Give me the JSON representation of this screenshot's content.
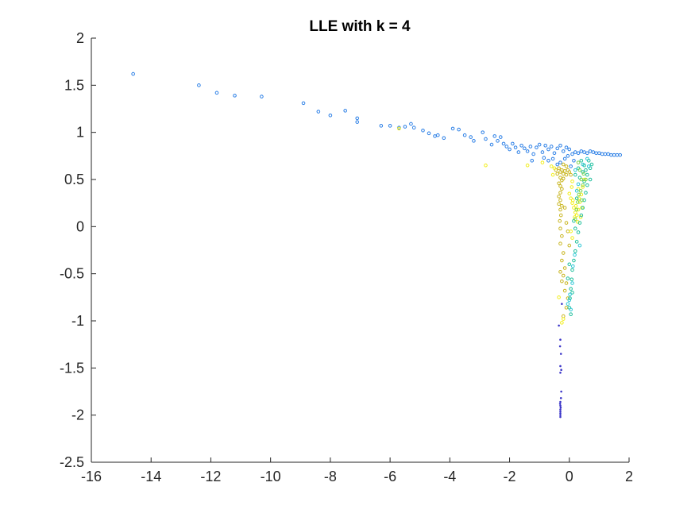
{
  "chart_data": {
    "type": "scatter",
    "title": "LLE with k = 4",
    "xlabel": "",
    "ylabel": "",
    "xlim": [
      -16,
      2
    ],
    "ylim": [
      -2.5,
      2
    ],
    "xticks": [
      -16,
      -14,
      -12,
      -10,
      -8,
      -6,
      -4,
      -2,
      0,
      2
    ],
    "yticks": [
      -2.5,
      -2,
      -1.5,
      -1,
      -0.5,
      0,
      0.5,
      1,
      1.5,
      2
    ],
    "grid": false,
    "legend": "none",
    "colors": {
      "blue": "#2b7fe6",
      "dark_blue": "#3b35c8",
      "teal": "#1fbf9c",
      "cyan": "#2ec7d6",
      "green": "#7cd44c",
      "olive": "#c8b51f",
      "yellow": "#f2ee1a",
      "axis": "#262626"
    },
    "series": [
      {
        "color": "blue",
        "marker": "circle",
        "points": [
          [
            -14.6,
            1.62
          ],
          [
            -12.4,
            1.5
          ],
          [
            -11.8,
            1.42
          ],
          [
            -11.2,
            1.39
          ],
          [
            -10.3,
            1.38
          ],
          [
            -8.9,
            1.31
          ],
          [
            -8.4,
            1.22
          ],
          [
            -8.0,
            1.18
          ],
          [
            -7.5,
            1.23
          ],
          [
            -7.1,
            1.15
          ],
          [
            -7.1,
            1.11
          ],
          [
            -6.3,
            1.07
          ],
          [
            -6.0,
            1.07
          ],
          [
            -5.7,
            1.05
          ],
          [
            -5.5,
            1.06
          ],
          [
            -5.3,
            1.09
          ],
          [
            -5.2,
            1.05
          ],
          [
            -4.9,
            1.02
          ],
          [
            -4.7,
            0.99
          ],
          [
            -4.5,
            0.96
          ],
          [
            -4.4,
            0.97
          ],
          [
            -4.2,
            0.94
          ],
          [
            -3.9,
            1.04
          ],
          [
            -3.7,
            1.03
          ],
          [
            -3.5,
            0.97
          ],
          [
            -3.3,
            0.95
          ],
          [
            -3.2,
            0.91
          ],
          [
            -2.9,
            1.0
          ],
          [
            -2.8,
            0.93
          ],
          [
            -2.6,
            0.87
          ],
          [
            -2.5,
            0.96
          ],
          [
            -2.4,
            0.91
          ],
          [
            -2.3,
            0.95
          ],
          [
            -2.2,
            0.88
          ],
          [
            -2.1,
            0.85
          ],
          [
            -2.0,
            0.82
          ],
          [
            -1.9,
            0.88
          ],
          [
            -1.8,
            0.84
          ],
          [
            -1.7,
            0.79
          ],
          [
            -1.6,
            0.86
          ],
          [
            -1.5,
            0.83
          ],
          [
            -1.4,
            0.8
          ],
          [
            -1.3,
            0.85
          ],
          [
            -1.2,
            0.77
          ],
          [
            -1.1,
            0.84
          ],
          [
            -1.0,
            0.87
          ],
          [
            -0.9,
            0.79
          ],
          [
            -0.8,
            0.86
          ],
          [
            -0.7,
            0.82
          ],
          [
            -0.6,
            0.85
          ],
          [
            -0.5,
            0.78
          ],
          [
            -0.4,
            0.83
          ],
          [
            -0.3,
            0.86
          ],
          [
            -0.2,
            0.8
          ],
          [
            -0.1,
            0.84
          ],
          [
            0.0,
            0.82
          ],
          [
            -0.05,
            0.75
          ],
          [
            -0.15,
            0.72
          ],
          [
            0.1,
            0.77
          ],
          [
            0.2,
            0.79
          ],
          [
            0.3,
            0.78
          ],
          [
            0.4,
            0.8
          ],
          [
            0.5,
            0.79
          ],
          [
            0.6,
            0.78
          ],
          [
            0.7,
            0.8
          ],
          [
            0.8,
            0.79
          ],
          [
            0.9,
            0.78
          ],
          [
            1.0,
            0.78
          ],
          [
            1.1,
            0.77
          ],
          [
            1.2,
            0.77
          ],
          [
            1.3,
            0.77
          ],
          [
            1.4,
            0.76
          ],
          [
            1.5,
            0.76
          ],
          [
            1.6,
            0.76
          ],
          [
            1.7,
            0.76
          ],
          [
            -0.3,
            0.68
          ],
          [
            -0.4,
            0.66
          ],
          [
            0.15,
            0.7
          ],
          [
            0.05,
            0.64
          ],
          [
            -0.55,
            0.72
          ],
          [
            -0.7,
            0.7
          ],
          [
            -0.85,
            0.73
          ],
          [
            -1.25,
            0.7
          ]
        ]
      },
      {
        "color": "dark_blue",
        "marker": "dot",
        "points": [
          [
            -0.3,
            -2.02
          ],
          [
            -0.3,
            -2.0
          ],
          [
            -0.3,
            -1.98
          ],
          [
            -0.3,
            -1.96
          ],
          [
            -0.3,
            -1.94
          ],
          [
            -0.29,
            -1.92
          ],
          [
            -0.3,
            -1.9
          ],
          [
            -0.31,
            -1.88
          ],
          [
            -0.3,
            -1.86
          ],
          [
            -0.28,
            -1.82
          ],
          [
            -0.27,
            -1.75
          ],
          [
            -0.3,
            -1.55
          ],
          [
            -0.27,
            -1.52
          ],
          [
            -0.3,
            -1.48
          ],
          [
            -0.28,
            -1.35
          ],
          [
            -0.31,
            -1.27
          ],
          [
            -0.3,
            -1.2
          ],
          [
            -0.35,
            -1.05
          ],
          [
            -0.25,
            -0.82
          ]
        ]
      },
      {
        "color": "olive",
        "marker": "circle",
        "points": [
          [
            -0.35,
            0.62
          ],
          [
            -0.3,
            0.58
          ],
          [
            -0.25,
            0.6
          ],
          [
            -0.2,
            0.56
          ],
          [
            -0.15,
            0.59
          ],
          [
            -0.1,
            0.55
          ],
          [
            -0.3,
            0.52
          ],
          [
            -0.25,
            0.49
          ],
          [
            -0.2,
            0.51
          ],
          [
            -0.35,
            0.46
          ],
          [
            -0.3,
            0.43
          ],
          [
            -0.25,
            0.4
          ],
          [
            -0.3,
            0.36
          ],
          [
            -0.35,
            0.32
          ],
          [
            -0.3,
            0.28
          ],
          [
            -0.25,
            0.22
          ],
          [
            -0.3,
            0.18
          ],
          [
            -0.28,
            0.12
          ],
          [
            -0.32,
            0.06
          ],
          [
            -0.3,
            -0.02
          ],
          [
            -0.25,
            -0.1
          ],
          [
            -0.3,
            -0.18
          ],
          [
            -0.2,
            -0.28
          ],
          [
            -0.25,
            -0.36
          ],
          [
            -0.15,
            -0.44
          ],
          [
            -0.2,
            -0.52
          ],
          [
            -0.1,
            -0.6
          ],
          [
            -0.15,
            -0.68
          ],
          [
            -0.05,
            -0.76
          ],
          [
            -0.1,
            -0.86
          ],
          [
            -0.2,
            -0.95
          ],
          [
            -0.05,
            0.6
          ],
          [
            0.0,
            0.58
          ],
          [
            -0.4,
            0.56
          ],
          [
            -0.45,
            0.6
          ],
          [
            -0.2,
            0.66
          ],
          [
            -0.1,
            0.64
          ],
          [
            0.05,
            0.55
          ],
          [
            -0.35,
            0.24
          ],
          [
            -0.15,
            0.2
          ],
          [
            -0.1,
            0.04
          ],
          [
            -0.05,
            -0.05
          ],
          [
            0.0,
            -0.2
          ],
          [
            -0.3,
            -0.48
          ],
          [
            -0.25,
            -0.58
          ]
        ]
      },
      {
        "color": "yellow",
        "marker": "circle",
        "points": [
          [
            0.0,
            0.35
          ],
          [
            0.05,
            0.3
          ],
          [
            0.1,
            0.25
          ],
          [
            0.15,
            0.2
          ],
          [
            0.2,
            0.15
          ],
          [
            0.25,
            0.12
          ],
          [
            0.3,
            0.18
          ],
          [
            0.35,
            0.26
          ],
          [
            0.4,
            0.34
          ],
          [
            0.45,
            0.42
          ],
          [
            0.5,
            0.5
          ],
          [
            0.12,
            0.28
          ],
          [
            0.22,
            0.22
          ],
          [
            0.32,
            0.3
          ],
          [
            0.18,
            0.1
          ],
          [
            0.28,
            0.05
          ],
          [
            0.08,
            0.42
          ],
          [
            0.42,
            0.2
          ],
          [
            -0.5,
            0.62
          ],
          [
            -0.55,
            0.55
          ],
          [
            -0.6,
            0.64
          ],
          [
            -2.8,
            0.65
          ],
          [
            -1.4,
            0.65
          ],
          [
            -0.9,
            0.68
          ],
          [
            -5.7,
            1.04
          ],
          [
            0.05,
            -0.05
          ],
          [
            0.1,
            -0.12
          ],
          [
            -0.35,
            -0.75
          ],
          [
            -0.25,
            -1.02
          ],
          [
            -0.2,
            -0.98
          ],
          [
            0.1,
            0.48
          ],
          [
            0.3,
            0.4
          ],
          [
            0.38,
            0.1
          ]
        ]
      },
      {
        "color": "teal",
        "marker": "circle",
        "points": [
          [
            0.4,
            0.7
          ],
          [
            0.5,
            0.65
          ],
          [
            0.55,
            0.6
          ],
          [
            0.6,
            0.55
          ],
          [
            0.65,
            0.7
          ],
          [
            0.7,
            0.62
          ],
          [
            0.45,
            0.58
          ],
          [
            0.35,
            0.52
          ],
          [
            0.5,
            0.48
          ],
          [
            0.6,
            0.44
          ],
          [
            0.55,
            0.36
          ],
          [
            0.5,
            0.28
          ],
          [
            0.45,
            0.2
          ],
          [
            0.4,
            0.12
          ],
          [
            0.35,
            0.04
          ],
          [
            0.3,
            -0.06
          ],
          [
            0.25,
            -0.16
          ],
          [
            0.2,
            -0.26
          ],
          [
            0.15,
            -0.36
          ],
          [
            0.1,
            -0.46
          ],
          [
            0.08,
            -0.56
          ],
          [
            0.05,
            -0.66
          ],
          [
            0.02,
            -0.76
          ],
          [
            0.0,
            -0.86
          ],
          [
            0.05,
            -0.93
          ],
          [
            0.2,
            -0.02
          ],
          [
            0.15,
            0.06
          ],
          [
            0.25,
            0.3
          ],
          [
            0.3,
            0.62
          ],
          [
            0.2,
            0.55
          ],
          [
            0.7,
            0.5
          ],
          [
            0.75,
            0.66
          ],
          [
            0.1,
            -0.7
          ],
          [
            0.0,
            -0.4
          ],
          [
            -0.05,
            -0.55
          ]
        ]
      },
      {
        "color": "cyan",
        "marker": "circle",
        "points": [
          [
            0.6,
            0.72
          ],
          [
            0.65,
            0.64
          ],
          [
            0.3,
            0.45
          ],
          [
            0.25,
            0.38
          ],
          [
            0.2,
            0.6
          ],
          [
            0.45,
            0.66
          ],
          [
            0.35,
            -0.2
          ],
          [
            0.18,
            -0.3
          ],
          [
            0.12,
            -0.42
          ],
          [
            0.1,
            -0.6
          ],
          [
            0.02,
            -0.72
          ],
          [
            0.0,
            -0.78
          ],
          [
            -0.05,
            -0.82
          ],
          [
            0.05,
            -0.88
          ]
        ]
      },
      {
        "color": "green",
        "marker": "circle",
        "points": [
          [
            0.3,
            0.68
          ],
          [
            0.35,
            0.6
          ],
          [
            0.4,
            0.5
          ],
          [
            0.45,
            0.44
          ],
          [
            0.38,
            0.38
          ],
          [
            0.32,
            0.34
          ],
          [
            0.28,
            0.26
          ],
          [
            0.24,
            0.18
          ],
          [
            0.2,
            0.08
          ],
          [
            0.48,
            0.56
          ],
          [
            0.55,
            0.5
          ],
          [
            0.42,
            0.28
          ]
        ]
      }
    ]
  }
}
